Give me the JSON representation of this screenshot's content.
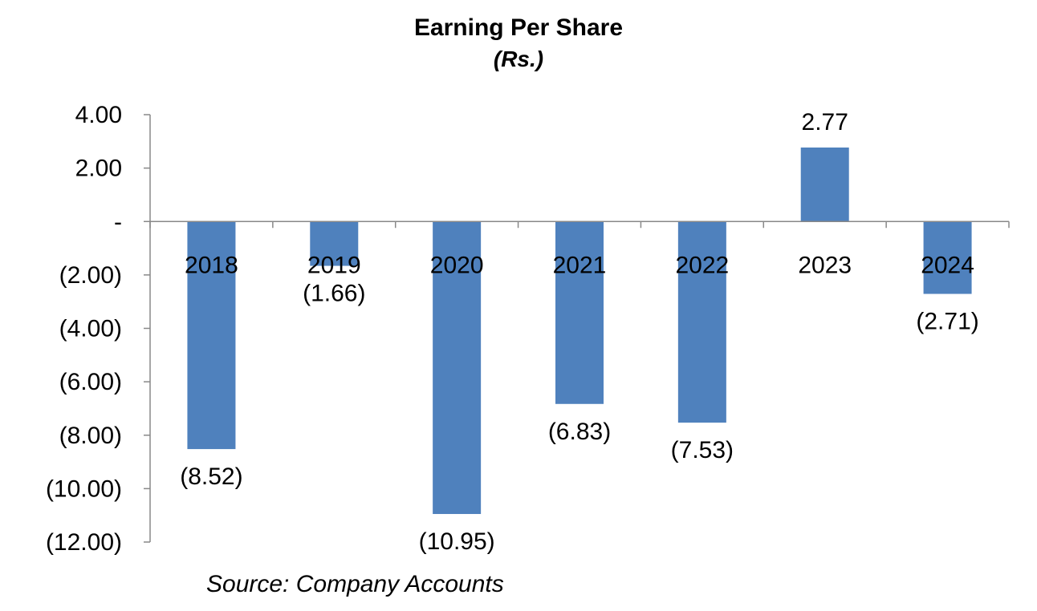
{
  "chart_data": {
    "type": "bar",
    "title": "Earning Per Share",
    "subtitle": "(Rs.)",
    "source": "Source: Company Accounts",
    "categories": [
      "2018",
      "2019",
      "2020",
      "2021",
      "2022",
      "2023",
      "2024"
    ],
    "values": [
      -8.52,
      -1.66,
      -10.95,
      -6.83,
      -7.53,
      2.77,
      -2.71
    ],
    "data_labels": [
      "(8.52)",
      "(1.66)",
      "(10.95)",
      "(6.83)",
      "(7.53)",
      "2.77",
      "(2.71)"
    ],
    "y_ticks": [
      {
        "value": 4,
        "label": "4.00"
      },
      {
        "value": 2,
        "label": "2.00"
      },
      {
        "value": 0,
        "label": "-"
      },
      {
        "value": -2,
        "label": "(2.00)"
      },
      {
        "value": -4,
        "label": "(4.00)"
      },
      {
        "value": -6,
        "label": "(6.00)"
      },
      {
        "value": -8,
        "label": "(8.00)"
      },
      {
        "value": -10,
        "label": "(10.00)"
      },
      {
        "value": -12,
        "label": "(12.00)"
      }
    ],
    "ylim": [
      -12,
      4
    ],
    "grid": false,
    "legend": "none",
    "bar_color": "#4F81BD"
  }
}
